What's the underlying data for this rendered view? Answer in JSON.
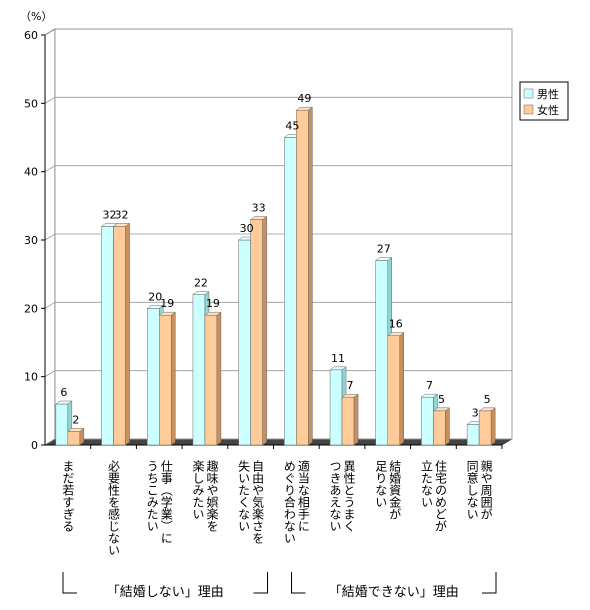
{
  "chart_data": {
    "type": "bar",
    "unit_label": "（%）",
    "ylim": [
      0,
      60
    ],
    "yticks": [
      0,
      10,
      20,
      30,
      40,
      50,
      60
    ],
    "grid": true,
    "legend_position": "right",
    "categories": [
      [
        "まだ若すぎる"
      ],
      [
        "必要性を感じない"
      ],
      [
        "仕事（学業）に",
        "うちこみたい"
      ],
      [
        "趣味や娯楽を",
        "楽しみたい"
      ],
      [
        "自由や気楽さを",
        "失いたくない"
      ],
      [
        "適当な相手に",
        "めぐり合わない"
      ],
      [
        "異性とうまく",
        "つきあえない"
      ],
      [
        "結婚資金が",
        "足りない"
      ],
      [
        "住宅のめどが",
        "立たない"
      ],
      [
        "親や周囲が",
        "同意しない"
      ]
    ],
    "series": [
      {
        "name": "男性",
        "color": "#ccffff",
        "values": [
          6,
          32,
          20,
          22,
          30,
          45,
          11,
          27,
          7,
          3
        ]
      },
      {
        "name": "女性",
        "color": "#ffcc99",
        "values": [
          2,
          32,
          19,
          19,
          33,
          49,
          7,
          16,
          5,
          5
        ]
      }
    ],
    "groups": [
      {
        "label": "「結婚しない」理由",
        "from": 0,
        "to": 4
      },
      {
        "label": "「結婚できない」理由",
        "from": 5,
        "to": 9
      }
    ]
  }
}
